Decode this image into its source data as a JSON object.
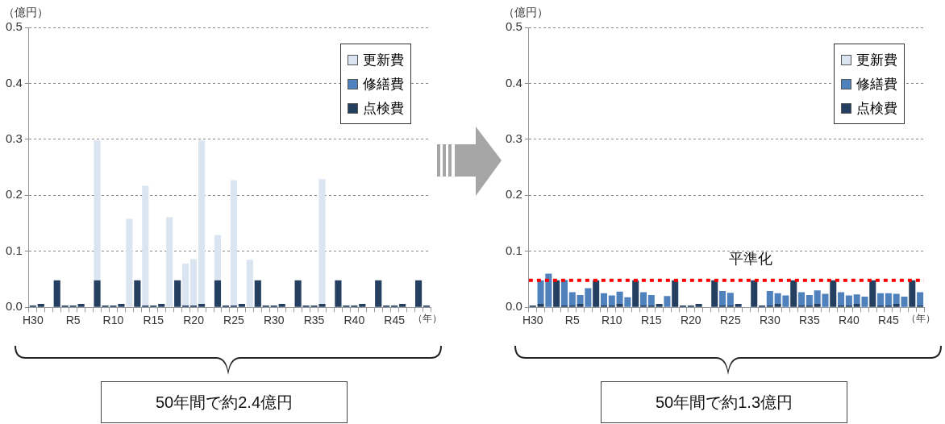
{
  "chart_data": [
    {
      "type": "bar",
      "stacked": true,
      "ylabel": "（億円）",
      "xlabel": "（年）",
      "ylim": [
        0,
        0.5
      ],
      "yticks": [
        {
          "value": 0,
          "label": "0.0"
        },
        0.1,
        0.2,
        0.3,
        0.4,
        0.5
      ],
      "grid": "y",
      "legend": "top right",
      "categories": [
        "H30",
        null,
        null,
        null,
        null,
        "R5",
        null,
        null,
        null,
        null,
        "R10",
        null,
        null,
        null,
        null,
        "R15",
        null,
        null,
        null,
        null,
        "R20",
        null,
        null,
        null,
        null,
        "R25",
        null,
        null,
        null,
        null,
        "R30",
        null,
        null,
        null,
        null,
        "R35",
        null,
        null,
        null,
        null,
        "R40",
        null,
        null,
        null,
        null,
        "R45",
        null,
        null,
        null,
        null
      ],
      "series": [
        {
          "name": "点検費",
          "color": "#243f60",
          "values": [
            0.003,
            0.006,
            0,
            0.048,
            0.003,
            0.003,
            0.006,
            0,
            0.048,
            0.003,
            0.003,
            0.006,
            0,
            0.048,
            0.003,
            0.003,
            0.006,
            0,
            0.048,
            0.003,
            0.003,
            0.006,
            0,
            0.048,
            0.003,
            0.003,
            0.006,
            0,
            0.048,
            0.003,
            0.003,
            0.006,
            0,
            0.048,
            0.003,
            0.003,
            0.006,
            0,
            0.048,
            0.003,
            0.003,
            0.006,
            0,
            0.048,
            0.003,
            0.003,
            0.006,
            0,
            0.048,
            0.003
          ]
        },
        {
          "name": "修繕費",
          "color": "#4f81bd",
          "values": [
            0,
            0,
            0,
            0,
            0,
            0,
            0,
            0,
            0,
            0,
            0,
            0,
            0,
            0,
            0,
            0,
            0,
            0,
            0,
            0,
            0,
            0,
            0,
            0,
            0,
            0,
            0,
            0,
            0,
            0,
            0,
            0,
            0,
            0,
            0,
            0,
            0,
            0,
            0,
            0,
            0,
            0,
            0,
            0,
            0,
            0,
            0,
            0,
            0,
            0
          ]
        },
        {
          "name": "更新費",
          "color": "#dbe5f1",
          "values": [
            0,
            0,
            0,
            0,
            0,
            0,
            0,
            0,
            0.25,
            0,
            0,
            0,
            0.158,
            0,
            0.214,
            0,
            0,
            0.161,
            0,
            0.075,
            0.083,
            0.292,
            0,
            0.081,
            0,
            0.224,
            0,
            0.085,
            0,
            0,
            0,
            0,
            0,
            0,
            0,
            0,
            0.223,
            0,
            0,
            0,
            0,
            0,
            0,
            0,
            0,
            0,
            0,
            0,
            0,
            0
          ]
        }
      ],
      "annotations": [
        "50年間で約2.4億円"
      ]
    },
    {
      "type": "bar",
      "stacked": true,
      "ylabel": "（億円）",
      "xlabel": "（年）",
      "ylim": [
        0,
        0.5
      ],
      "yticks": [
        {
          "value": 0,
          "label": "0.0"
        },
        0.1,
        0.2,
        0.3,
        0.4,
        0.5
      ],
      "grid": "y",
      "legend": "top right",
      "categories": [
        "H30",
        null,
        null,
        null,
        null,
        "R5",
        null,
        null,
        null,
        null,
        "R10",
        null,
        null,
        null,
        null,
        "R15",
        null,
        null,
        null,
        null,
        "R20",
        null,
        null,
        null,
        null,
        "R25",
        null,
        null,
        null,
        null,
        "R30",
        null,
        null,
        null,
        null,
        "R35",
        null,
        null,
        null,
        null,
        "R40",
        null,
        null,
        null,
        null,
        "R45",
        null,
        null,
        null,
        null
      ],
      "series": [
        {
          "name": "点検費",
          "color": "#243f60",
          "values": [
            0.003,
            0.006,
            0,
            0.048,
            0.003,
            0.003,
            0.006,
            0,
            0.048,
            0.003,
            0.003,
            0.006,
            0,
            0.048,
            0.003,
            0.003,
            0.006,
            0,
            0.048,
            0.003,
            0.003,
            0.006,
            0,
            0.048,
            0.003,
            0.003,
            0.006,
            0,
            0.048,
            0.003,
            0.003,
            0.006,
            0,
            0.048,
            0.003,
            0.003,
            0.006,
            0,
            0.048,
            0.003,
            0.003,
            0.006,
            0,
            0.048,
            0.003,
            0.003,
            0.006,
            0,
            0.048,
            0.003
          ]
        },
        {
          "name": "修繕費",
          "color": "#4f81bd",
          "values": [
            0,
            0.042,
            0.06,
            0,
            0.046,
            0.024,
            0.016,
            0.034,
            0,
            0.022,
            0.018,
            0.022,
            0.018,
            0,
            0.024,
            0.019,
            0,
            0.02,
            0,
            0,
            0,
            0,
            0,
            0,
            0.026,
            0.023,
            0,
            0,
            0,
            0,
            0.026,
            0.019,
            0.021,
            0,
            0.024,
            0.019,
            0.024,
            0.024,
            0,
            0.024,
            0.018,
            0.017,
            0.019,
            0,
            0.022,
            0.022,
            0.018,
            0.019,
            0,
            0.024
          ]
        },
        {
          "name": "更新費",
          "color": "#dbe5f1",
          "values": [
            0,
            0,
            0,
            0,
            0,
            0,
            0,
            0,
            0,
            0,
            0,
            0,
            0,
            0,
            0,
            0,
            0,
            0,
            0,
            0,
            0,
            0,
            0,
            0,
            0,
            0,
            0,
            0,
            0,
            0,
            0,
            0,
            0,
            0,
            0,
            0,
            0,
            0,
            0,
            0,
            0,
            0,
            0,
            0,
            0,
            0,
            0,
            0,
            0,
            0
          ]
        }
      ],
      "ref_lines": [
        {
          "axis": "y",
          "value": 0.048,
          "label": "平準化",
          "color": "#ff0000",
          "line_style": "dotted"
        }
      ],
      "annotations": [
        "50年間で約1.3億円"
      ]
    }
  ]
}
